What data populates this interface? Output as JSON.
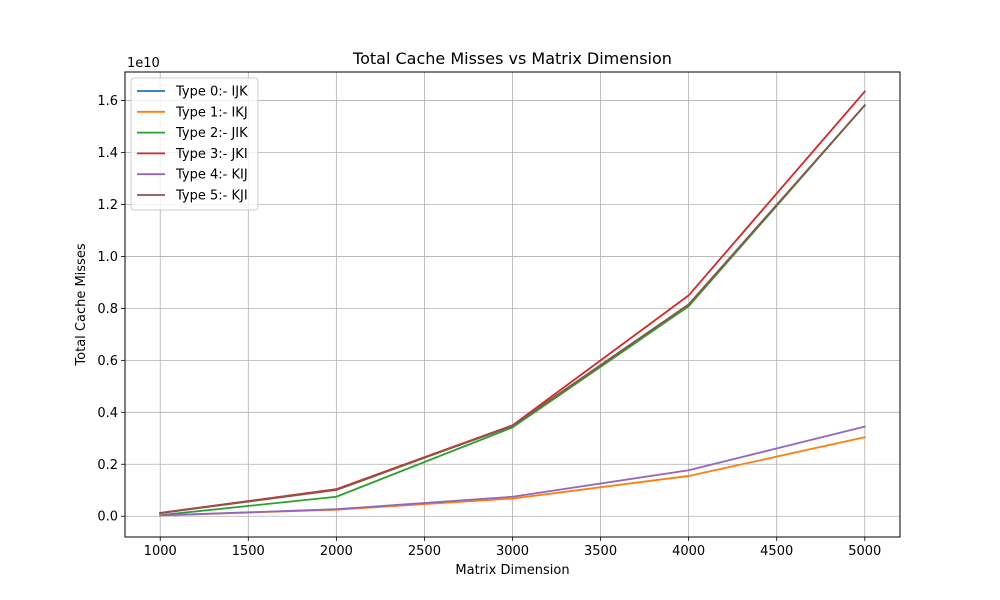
{
  "chart_data": {
    "type": "line",
    "title": "Total Cache Misses vs Matrix Dimension",
    "xlabel": "Matrix Dimension",
    "ylabel": "Total Cache Misses",
    "y_scale_label": "1e10",
    "xlim": [
      800,
      5200
    ],
    "ylim": [
      -0.08,
      1.71
    ],
    "x_ticks": [
      1000,
      1500,
      2000,
      2500,
      3000,
      3500,
      4000,
      4500,
      5000
    ],
    "y_ticks": [
      0.0,
      0.2,
      0.4,
      0.6,
      0.8,
      1.0,
      1.2,
      1.4,
      1.6
    ],
    "y_tick_labels": [
      "0.0",
      "0.2",
      "0.4",
      "0.6",
      "0.8",
      "1.0",
      "1.2",
      "1.4",
      "1.6"
    ],
    "grid": true,
    "legend_position": "upper-left",
    "x": [
      1000,
      2000,
      3000,
      4000,
      5000
    ],
    "series": [
      {
        "name": "Type 0:- IJK",
        "color": "#1f77b4",
        "values": [
          0.012,
          0.103,
          0.348,
          0.815,
          1.582
        ]
      },
      {
        "name": "Type 1:- IKJ",
        "color": "#ff7f0e",
        "values": [
          0.003,
          0.025,
          0.068,
          0.155,
          0.304
        ]
      },
      {
        "name": "Type 2:- JIK",
        "color": "#2ca02c",
        "values": [
          0.004,
          0.075,
          0.342,
          0.808,
          1.582
        ]
      },
      {
        "name": "Type 3:- JKI",
        "color": "#d62728",
        "values": [
          0.013,
          0.104,
          0.35,
          0.85,
          1.635
        ]
      },
      {
        "name": "Type 4:- KIJ",
        "color": "#9467bd",
        "values": [
          0.003,
          0.027,
          0.075,
          0.177,
          0.345
        ]
      },
      {
        "name": "Type 5:- KJI",
        "color": "#8c564b",
        "values": [
          0.012,
          0.101,
          0.348,
          0.815,
          1.582
        ]
      }
    ]
  }
}
